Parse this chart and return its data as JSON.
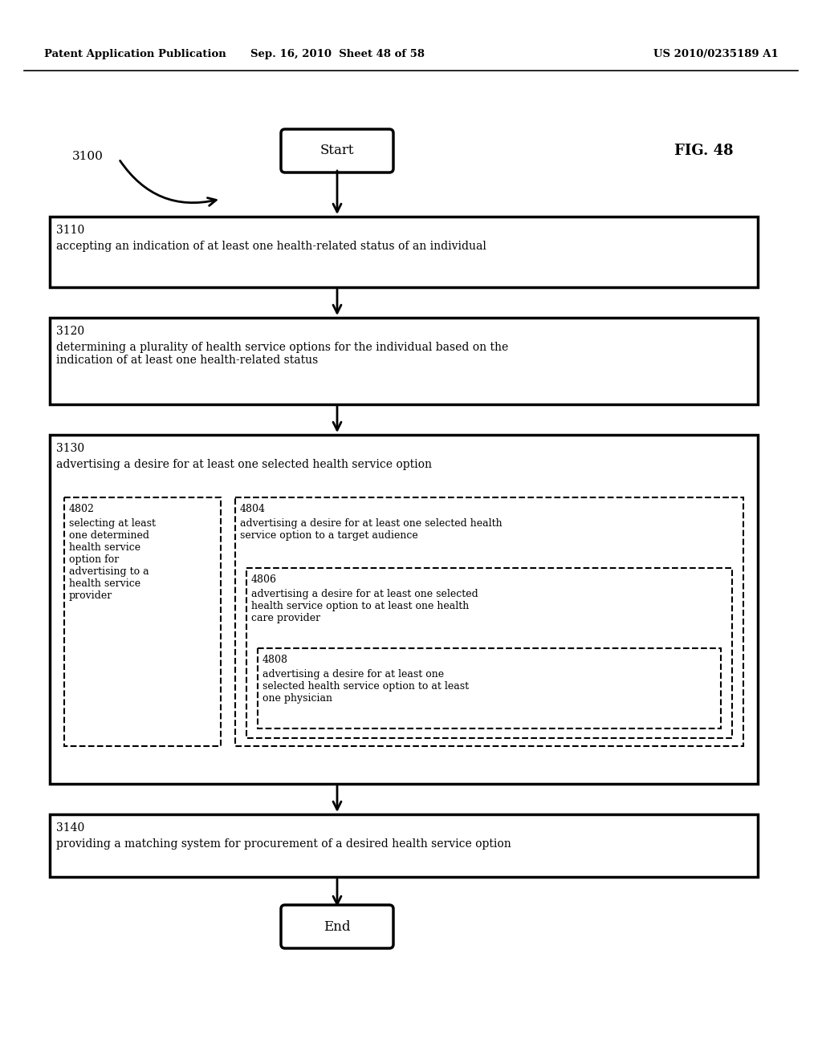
{
  "bg_color": "#ffffff",
  "header_left": "Patent Application Publication",
  "header_center": "Sep. 16, 2010  Sheet 48 of 58",
  "header_right": "US 2010/0235189 A1",
  "fig_label": "FIG. 48",
  "diagram_label": "3100",
  "start_label": "Start",
  "end_label": "End",
  "box3110_label": "3110",
  "box3110_text": "accepting an indication of at least one health-related status of an individual",
  "box3120_label": "3120",
  "box3120_text": "determining a plurality of health service options for the individual based on the\nindication of at least one health-related status",
  "box3130_label": "3130",
  "box3130_text": "advertising a desire for at least one selected health service option",
  "box3140_label": "3140",
  "box3140_text": "providing a matching system for procurement of a desired health service option",
  "box4802_label": "4802",
  "box4802_text": "selecting at least\none determined\nhealth service\noption for\nadvertising to a\nhealth service\nprovider",
  "box4804_label": "4804",
  "box4804_text": "advertising a desire for at least one selected health\nservice option to a target audience",
  "box4806_label": "4806",
  "box4806_text": "advertising a desire for at least one selected\nhealth service option to at least one health\ncare provider",
  "box4808_label": "4808",
  "box4808_text": "advertising a desire for at least one\nselected health service option to at least\none physician"
}
